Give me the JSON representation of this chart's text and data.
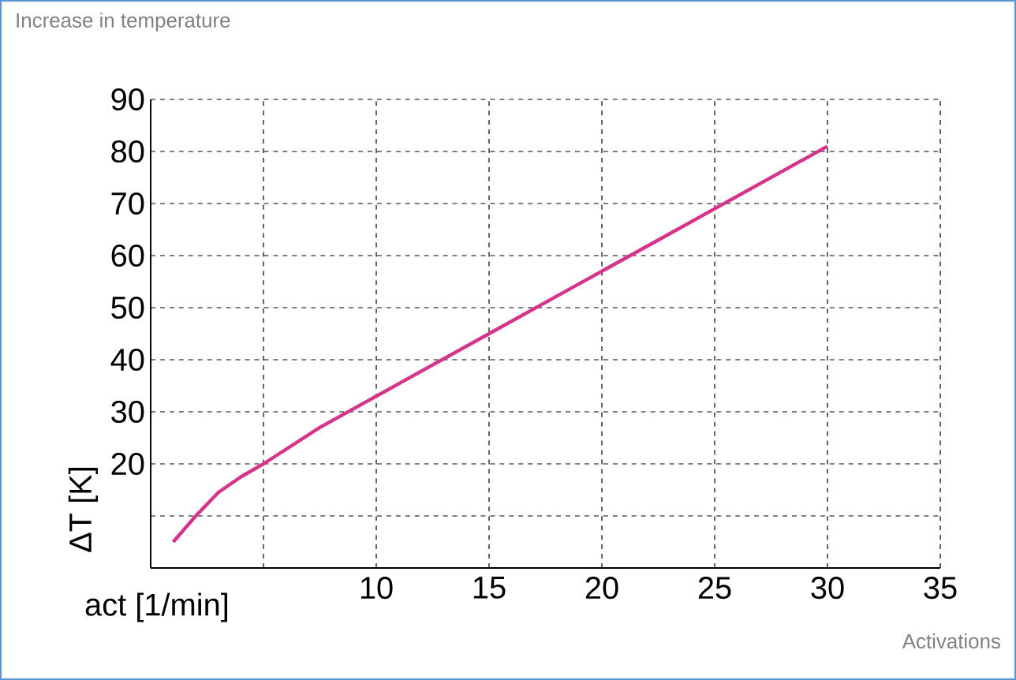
{
  "chart_data": {
    "type": "line",
    "title": "Increase in temperature",
    "xlabel": "Activations",
    "ylabel": "ΔT [K]",
    "annotations": [
      "act [1/min]"
    ],
    "series": [
      {
        "color": "#d6338a",
        "x": [
          1,
          2,
          3,
          4,
          5,
          7.5,
          10,
          12.5,
          15,
          17.5,
          20,
          22.5,
          25,
          27.5,
          30
        ],
        "values": [
          5,
          10,
          14.5,
          17.5,
          20,
          27,
          33,
          39,
          45,
          51,
          57,
          63,
          69,
          75,
          81
        ]
      }
    ],
    "xlim": [
      0,
      35
    ],
    "xticks": [
      {
        "value": 5,
        "label": null
      },
      10,
      15,
      20,
      25,
      30,
      35
    ],
    "ylim": [
      0,
      90
    ],
    "yticks": [
      {
        "value": 10,
        "label": null
      },
      20,
      30,
      40,
      50,
      60,
      70,
      80,
      90
    ],
    "grid": true,
    "marker": "none",
    "line_style": "solid"
  }
}
